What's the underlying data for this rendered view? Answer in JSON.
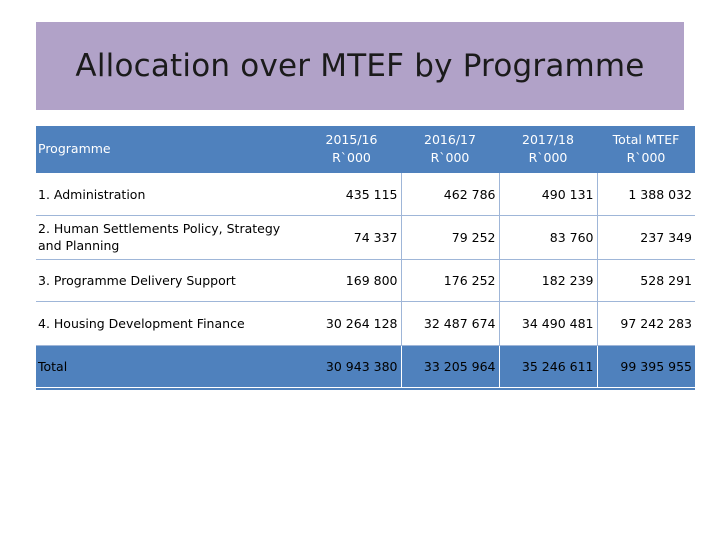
{
  "slide": {
    "title": "Allocation over MTEF by Programme"
  },
  "table": {
    "header": {
      "programme": "Programme",
      "col1_line1": "2015/16",
      "col1_line2": "R`000",
      "col2_line1": "2016/17",
      "col2_line2": "R`000",
      "col3_line1": "2017/18",
      "col3_line2": "R`000",
      "col4_line1": "Total MTEF",
      "col4_line2": "R`000"
    },
    "rows": [
      {
        "programme": "1. Administration",
        "y2015": "435 115",
        "y2016": "462 786",
        "y2017": "490 131",
        "total": "1 388 032"
      },
      {
        "programme": "2. Human Settlements Policy, Strategy and Planning",
        "y2015": "74 337",
        "y2016": "79 252",
        "y2017": "83 760",
        "total": "237 349"
      },
      {
        "programme": "3. Programme  Delivery Support",
        "y2015": "169 800",
        "y2016": "176 252",
        "y2017": "182 239",
        "total": "528 291"
      },
      {
        "programme": "4. Housing Development Finance",
        "y2015": "30 264 128",
        "y2016": "32 487 674",
        "y2017": "34 490 481",
        "total": "97 242 283"
      }
    ],
    "total_row": {
      "programme": "Total",
      "y2015": "30 943 380",
      "y2016": "33 205 964",
      "y2017": "35 246 611",
      "total": "99 395 955"
    }
  },
  "colors": {
    "title_band": "#b1a2c8",
    "table_header": "#4f81bd",
    "grid_line": "#9fb6d8"
  }
}
